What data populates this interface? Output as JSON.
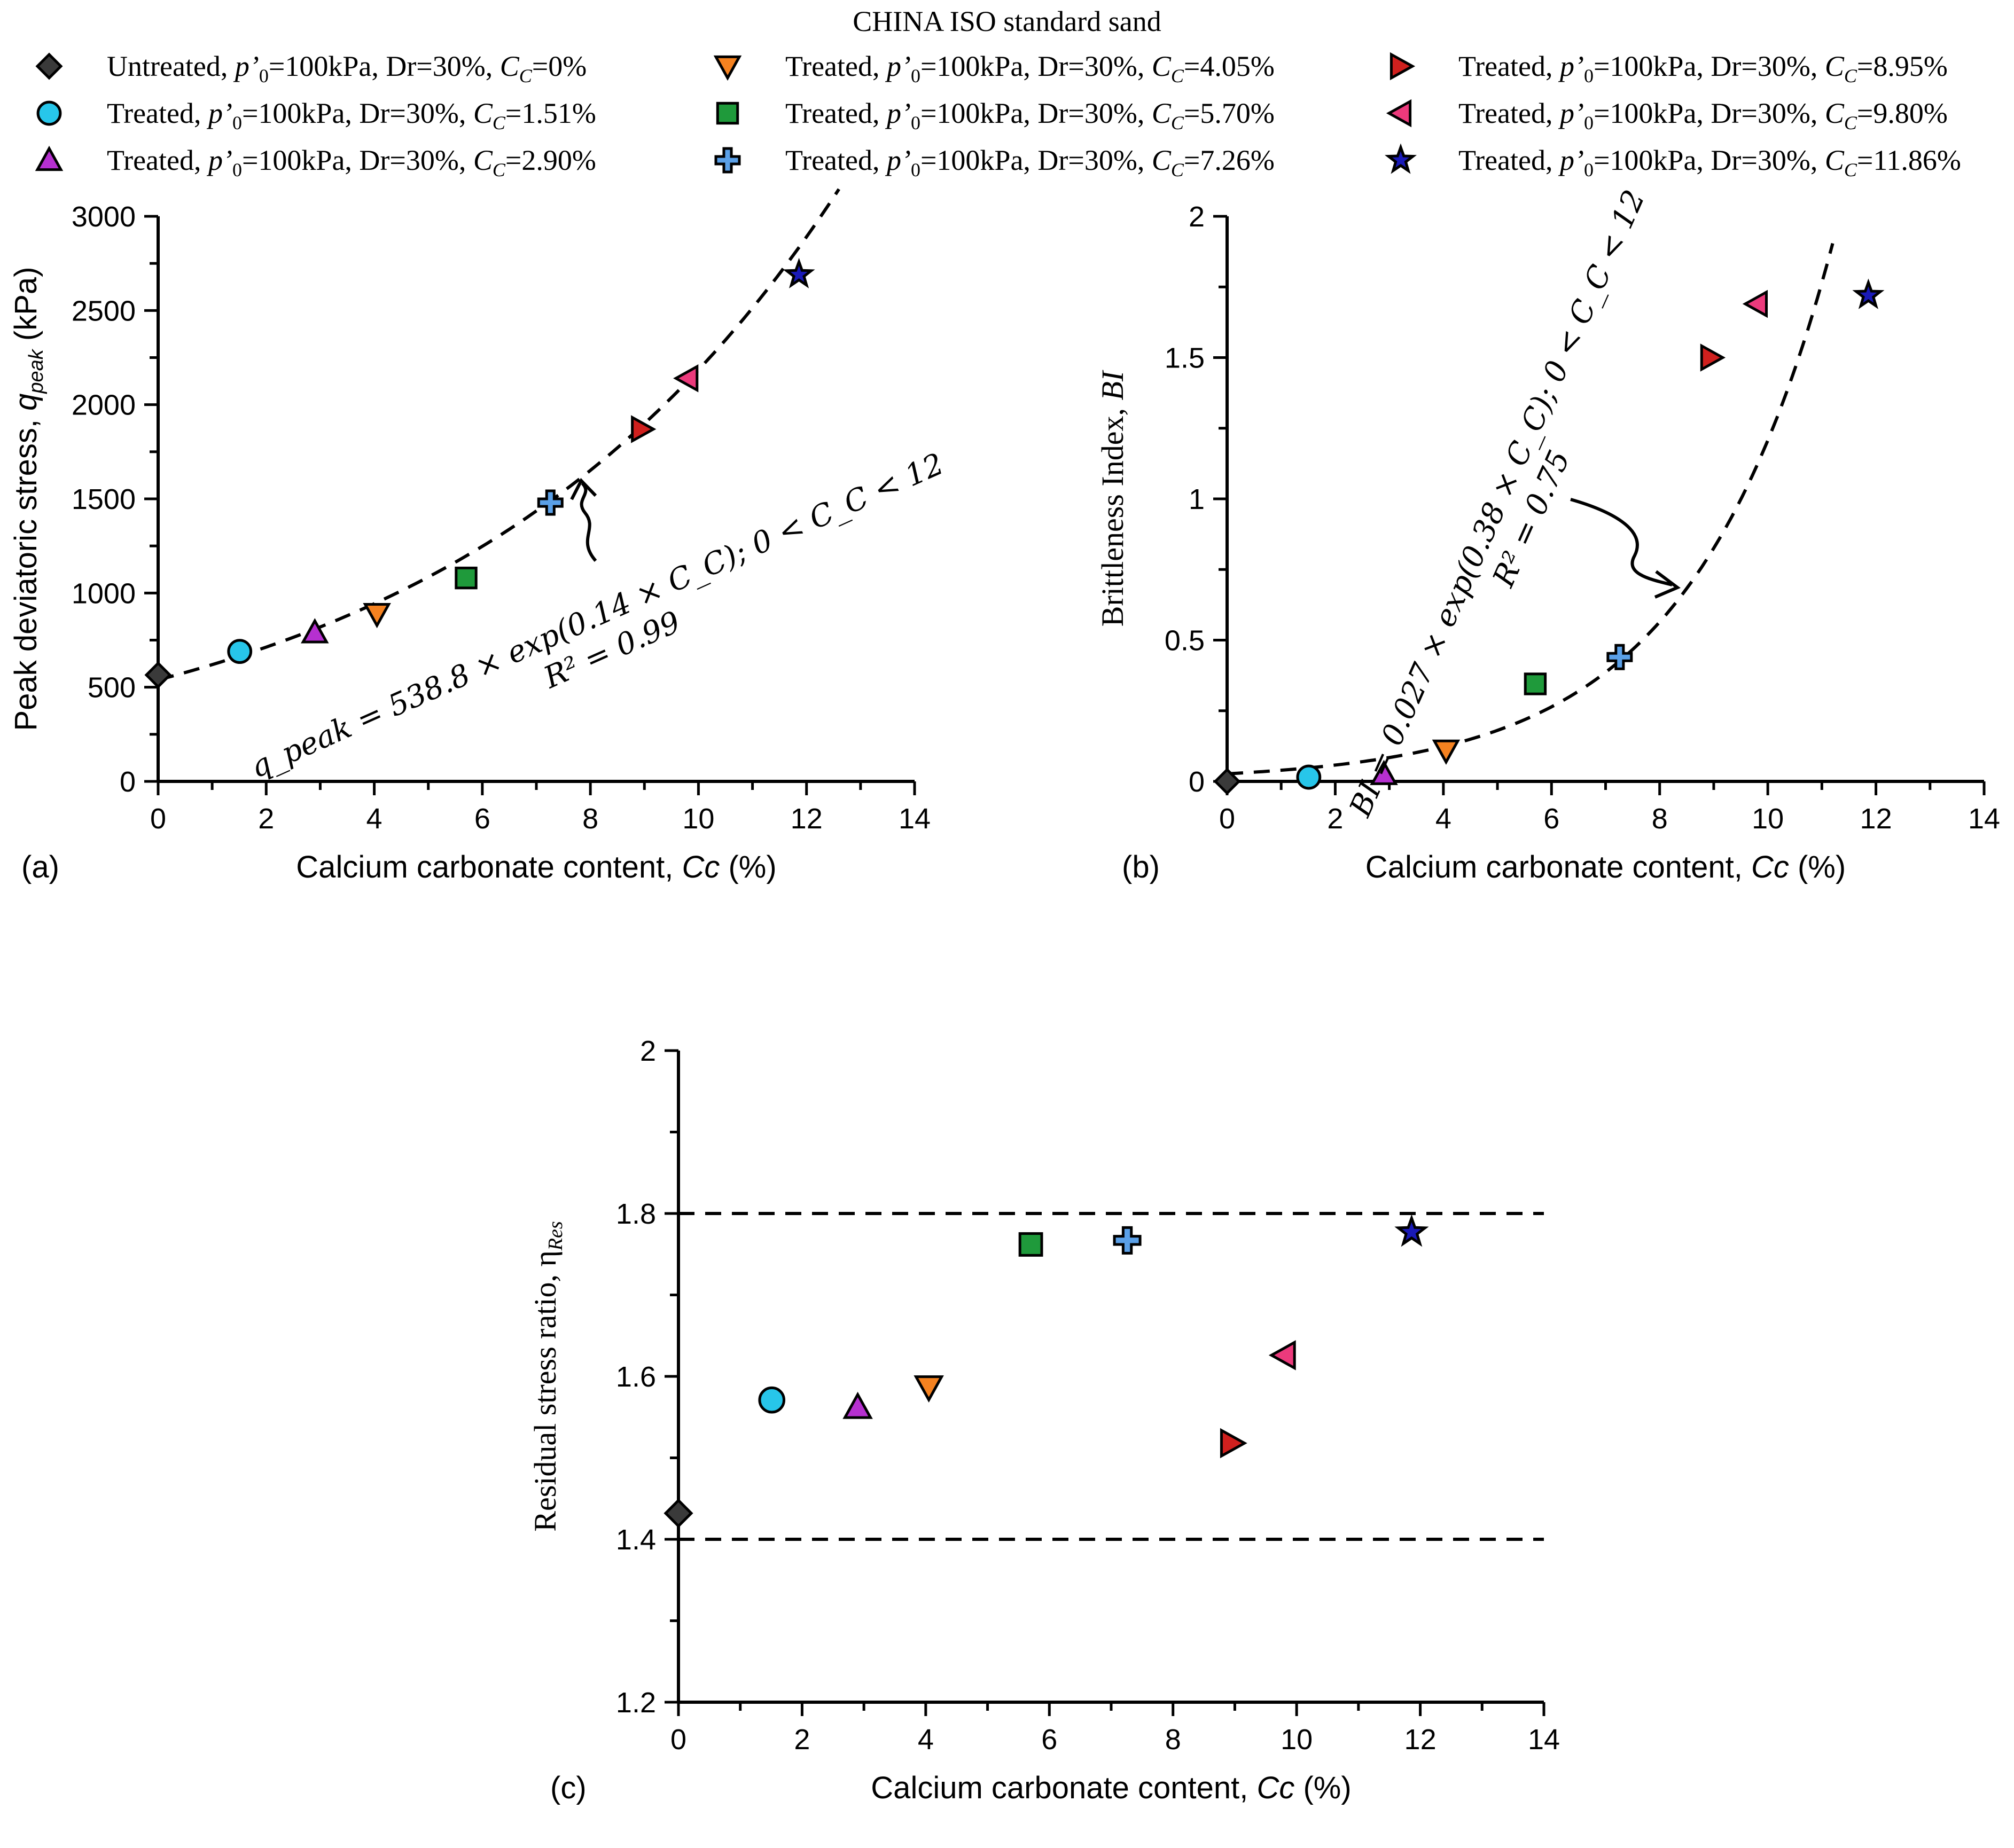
{
  "title": "CHINA ISO standard sand",
  "legend": [
    {
      "id": "s0",
      "shape": "diamond",
      "color": "#3a3a3a",
      "prefix": "Untreated, ",
      "p0": "p’",
      "p0sub": "0",
      "mid": "=100kPa, Dr=30%, ",
      "cc": "C",
      "ccsub": "C",
      "val": "=0%"
    },
    {
      "id": "s1",
      "shape": "circle",
      "color": "#27c6ea",
      "prefix": "Treated, ",
      "p0": "p’",
      "p0sub": "0",
      "mid": "=100kPa, Dr=30%, ",
      "cc": "C",
      "ccsub": "C",
      "val": "=1.51%"
    },
    {
      "id": "s2",
      "shape": "triangle-up",
      "color": "#b630d0",
      "prefix": "Treated, ",
      "p0": "p’",
      "p0sub": "0",
      "mid": "=100kPa, Dr=30%, ",
      "cc": "C",
      "ccsub": "C",
      "val": "=2.90%"
    },
    {
      "id": "s3",
      "shape": "triangle-down",
      "color": "#f58220",
      "prefix": "Treated, ",
      "p0": "p’",
      "p0sub": "0",
      "mid": "=100kPa, Dr=30%, ",
      "cc": "C",
      "ccsub": "C",
      "val": "=4.05%"
    },
    {
      "id": "s4",
      "shape": "square",
      "color": "#1f9a3b",
      "prefix": "Treated, ",
      "p0": "p’",
      "p0sub": "0",
      "mid": "=100kPa, Dr=30%, ",
      "cc": "C",
      "ccsub": "C",
      "val": "=5.70%"
    },
    {
      "id": "s5",
      "shape": "cross",
      "color": "#5aa0e8",
      "prefix": "Treated, ",
      "p0": "p’",
      "p0sub": "0",
      "mid": "=100kPa, Dr=30%, ",
      "cc": "C",
      "ccsub": "C",
      "val": "=7.26%"
    },
    {
      "id": "s6",
      "shape": "triangle-right",
      "color": "#d0201e",
      "prefix": "Treated, ",
      "p0": "p’",
      "p0sub": "0",
      "mid": "=100kPa, Dr=30%, ",
      "cc": "C",
      "ccsub": "C",
      "val": "=8.95%"
    },
    {
      "id": "s7",
      "shape": "triangle-left",
      "color": "#ec3a7c",
      "prefix": "Treated, ",
      "p0": "p’",
      "p0sub": "0",
      "mid": "=100kPa, Dr=30%, ",
      "cc": "C",
      "ccsub": "C",
      "val": "=9.80%"
    },
    {
      "id": "s8",
      "shape": "star",
      "color": "#1a1ab8",
      "prefix": "Treated, ",
      "p0": "p’",
      "p0sub": "0",
      "mid": "=100kPa, Dr=30%, ",
      "cc": "C",
      "ccsub": "C",
      "val": "=11.86%"
    }
  ],
  "chart_data": [
    {
      "type": "scatter",
      "panel": "(a)",
      "xlabel_main": "Calcium carbonate content, ",
      "xlabel_ital": "Cc",
      "xlabel_unit": " (%)",
      "ylabel_main": "Peak deviatoric stress, ",
      "ylabel_ital": "q",
      "ylabel_sub": "peak",
      "ylabel_unit": " (kPa)",
      "xlim": [
        0,
        14
      ],
      "ylim": [
        0,
        3000
      ],
      "xticks": [
        0,
        2,
        4,
        6,
        8,
        10,
        12,
        14
      ],
      "yticks": [
        0,
        500,
        1000,
        1500,
        2000,
        2500,
        3000
      ],
      "x": [
        0,
        1.51,
        2.9,
        4.05,
        5.7,
        7.26,
        8.95,
        9.8,
        11.86
      ],
      "y": [
        565,
        690,
        790,
        890,
        1080,
        1480,
        1870,
        2140,
        2690
      ],
      "fit": {
        "a": 538.8,
        "b": 0.14,
        "x_range": [
          0,
          12.6
        ]
      },
      "equation_line1": "q_peak = 538.8 × exp(0.14 × C_C);  0 < C_C < 12",
      "equation_line2": "R² = 0.99"
    },
    {
      "type": "scatter",
      "panel": "(b)",
      "xlabel_main": "Calcium carbonate content, ",
      "xlabel_ital": "Cc",
      "xlabel_unit": " (%)",
      "ylabel_main": "Brittleness Index, ",
      "ylabel_ital": "BI",
      "xlim": [
        0,
        14
      ],
      "ylim": [
        0,
        2
      ],
      "xticks": [
        0,
        2,
        4,
        6,
        8,
        10,
        12,
        14
      ],
      "yticks": [
        0,
        0.5,
        1,
        1.5,
        2
      ],
      "ytick_labels": [
        "0",
        "0.5",
        "1",
        "1.5",
        "2"
      ],
      "x": [
        0,
        1.51,
        2.9,
        4.05,
        5.7,
        7.26,
        8.95,
        9.8,
        11.86
      ],
      "y": [
        0.0,
        0.015,
        0.025,
        0.11,
        0.345,
        0.44,
        1.5,
        1.69,
        1.72
      ],
      "fit": {
        "a": 0.027,
        "b": 0.38,
        "x_range": [
          0,
          11.2
        ]
      },
      "equation_line1": "BI = 0.027 × exp(0.38 × C_C);  0 < C_C < 12",
      "equation_line2": "R² = 0.75"
    },
    {
      "type": "scatter",
      "panel": "(c)",
      "xlabel_main": "Calcium carbonate content, ",
      "xlabel_ital": "Cc",
      "xlabel_unit": " (%)",
      "ylabel_main": "Residual stress ratio, η",
      "ylabel_sub": "Res",
      "xlim": [
        0,
        14
      ],
      "ylim": [
        1.2,
        2
      ],
      "xticks": [
        0,
        2,
        4,
        6,
        8,
        10,
        12,
        14
      ],
      "yticks": [
        1.2,
        1.4,
        1.6,
        1.8,
        2
      ],
      "ytick_labels": [
        "1.2",
        "1.4",
        "1.6",
        "1.8",
        "2"
      ],
      "x": [
        0,
        1.51,
        2.9,
        4.05,
        5.7,
        7.26,
        8.95,
        9.8,
        11.86
      ],
      "y": [
        1.432,
        1.571,
        1.562,
        1.587,
        1.762,
        1.767,
        1.518,
        1.626,
        1.777
      ],
      "hlines": [
        1.8,
        1.4
      ]
    }
  ]
}
